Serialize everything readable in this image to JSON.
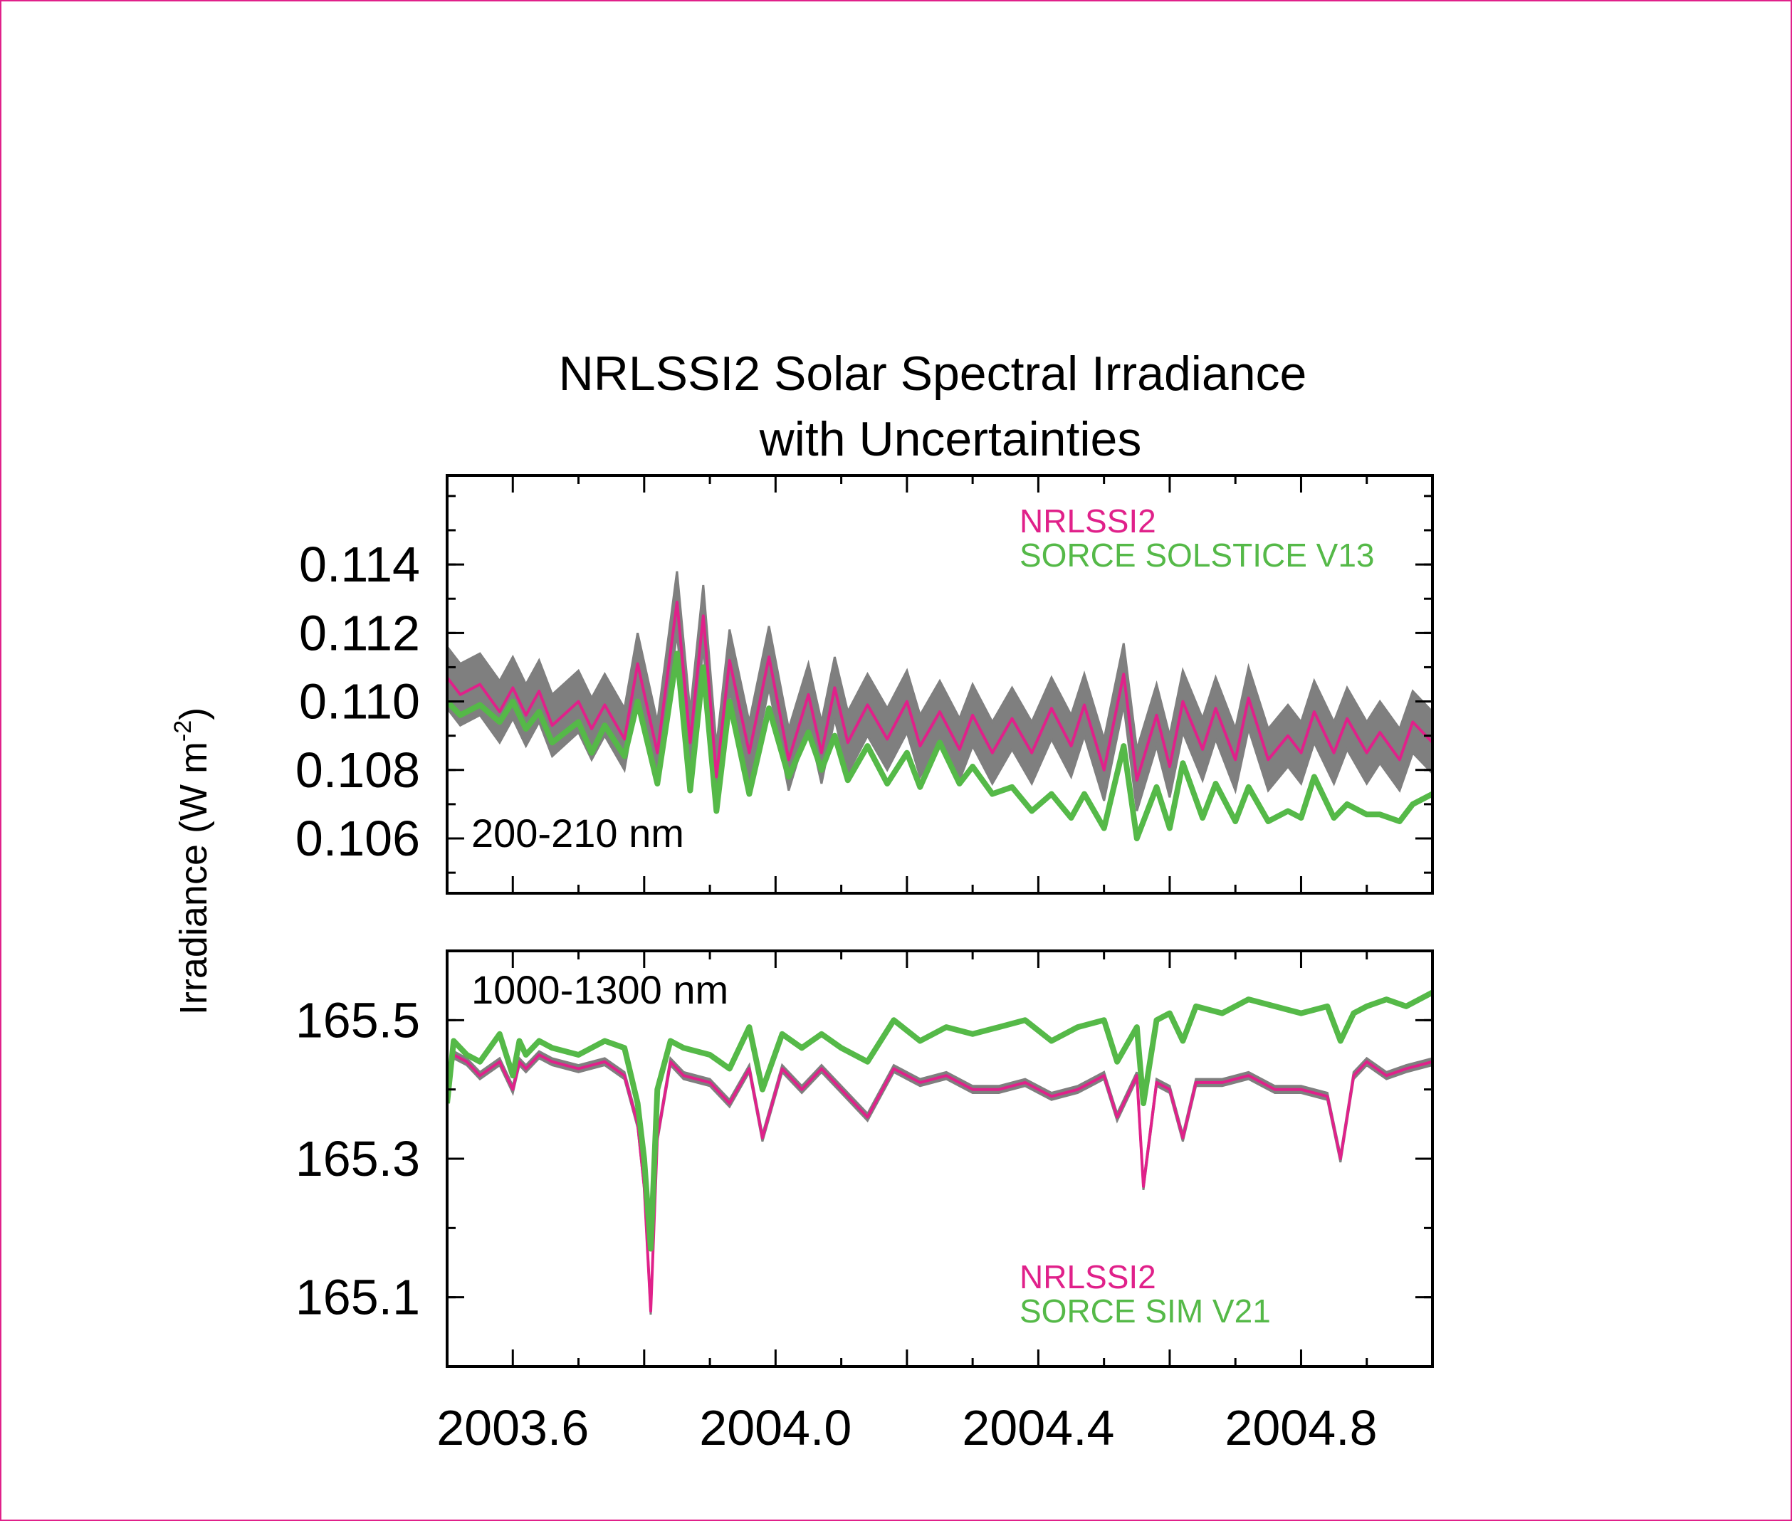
{
  "chart_data": {
    "title_line1": "NRLSSI2 Solar Spectral Irradiance",
    "title_line2": "with Uncertainties",
    "ylabel": "Irradiance (W m",
    "ylabel_sup": "-2",
    "ylabel_close": ")",
    "xlim": [
      2003.5,
      2005.0
    ],
    "x_ticks": [
      "2003.6",
      "2004.0",
      "2004.4",
      "2004.8"
    ],
    "x_tick_values": [
      2003.6,
      2004.0,
      2004.4,
      2004.8
    ],
    "colors": {
      "nrlssi2": "#e0218a",
      "sorce": "#55b948",
      "uncertainty": "#7f7f7f"
    },
    "panels": [
      {
        "band": "200-210 nm",
        "type": "line",
        "ylim": [
          0.1044,
          0.1166
        ],
        "y_ticks": [
          "0.114",
          "0.112",
          "0.110",
          "0.108",
          "0.106"
        ],
        "y_tick_values": [
          0.114,
          0.112,
          0.11,
          0.108,
          0.106
        ],
        "legend": [
          "NRLSSI2",
          "SORCE SOLSTICE V13"
        ],
        "uncertainty_halfwidth": 0.0009,
        "series": [
          {
            "name": "NRLSSI2",
            "x": [
              2003.5,
              2003.52,
              2003.55,
              2003.58,
              2003.6,
              2003.62,
              2003.64,
              2003.66,
              2003.7,
              2003.72,
              2003.74,
              2003.77,
              2003.79,
              2003.82,
              2003.85,
              2003.87,
              2003.89,
              2003.91,
              2003.93,
              2003.96,
              2003.99,
              2004.02,
              2004.05,
              2004.07,
              2004.09,
              2004.11,
              2004.14,
              2004.17,
              2004.2,
              2004.22,
              2004.25,
              2004.28,
              2004.3,
              2004.33,
              2004.36,
              2004.39,
              2004.42,
              2004.45,
              2004.47,
              2004.5,
              2004.53,
              2004.55,
              2004.58,
              2004.6,
              2004.62,
              2004.65,
              2004.67,
              2004.7,
              2004.72,
              2004.75,
              2004.78,
              2004.8,
              2004.82,
              2004.85,
              2004.87,
              2004.9,
              2004.92,
              2004.95,
              2004.97,
              2005.0
            ],
            "values": [
              0.1107,
              0.1102,
              0.1105,
              0.1097,
              0.1104,
              0.1096,
              0.1103,
              0.1093,
              0.11,
              0.1092,
              0.1099,
              0.1089,
              0.1111,
              0.1085,
              0.1129,
              0.1088,
              0.1125,
              0.1078,
              0.1112,
              0.1085,
              0.1113,
              0.1083,
              0.1102,
              0.1085,
              0.1104,
              0.1088,
              0.1099,
              0.1089,
              0.11,
              0.1087,
              0.1097,
              0.1086,
              0.1096,
              0.1085,
              0.1095,
              0.1085,
              0.1098,
              0.1087,
              0.1099,
              0.108,
              0.1108,
              0.1077,
              0.1096,
              0.1081,
              0.11,
              0.1086,
              0.1098,
              0.1083,
              0.1101,
              0.1083,
              0.109,
              0.1085,
              0.1097,
              0.1085,
              0.1095,
              0.1085,
              0.1091,
              0.1083,
              0.1094,
              0.1088
            ]
          },
          {
            "name": "SORCE SOLSTICE V13",
            "x": [
              2003.5,
              2003.52,
              2003.55,
              2003.58,
              2003.6,
              2003.62,
              2003.64,
              2003.66,
              2003.7,
              2003.72,
              2003.74,
              2003.77,
              2003.79,
              2003.82,
              2003.85,
              2003.87,
              2003.89,
              2003.91,
              2003.93,
              2003.96,
              2003.99,
              2004.02,
              2004.05,
              2004.07,
              2004.09,
              2004.11,
              2004.14,
              2004.17,
              2004.2,
              2004.22,
              2004.25,
              2004.28,
              2004.3,
              2004.33,
              2004.36,
              2004.39,
              2004.42,
              2004.45,
              2004.47,
              2004.5,
              2004.53,
              2004.55,
              2004.58,
              2004.6,
              2004.62,
              2004.65,
              2004.67,
              2004.7,
              2004.72,
              2004.75,
              2004.78,
              2004.8,
              2004.82,
              2004.85,
              2004.87,
              2004.9,
              2004.92,
              2004.95,
              2004.97,
              2005.0
            ],
            "values": [
              0.11,
              0.1096,
              0.1099,
              0.1094,
              0.11,
              0.1092,
              0.1097,
              0.1088,
              0.1094,
              0.1085,
              0.1093,
              0.1084,
              0.11,
              0.1076,
              0.1114,
              0.1074,
              0.111,
              0.1068,
              0.11,
              0.1073,
              0.1098,
              0.1078,
              0.1091,
              0.108,
              0.109,
              0.1077,
              0.1087,
              0.1076,
              0.1085,
              0.1075,
              0.1088,
              0.1076,
              0.1081,
              0.1073,
              0.1075,
              0.1068,
              0.1073,
              0.1066,
              0.1073,
              0.1063,
              0.1087,
              0.106,
              0.1075,
              0.1063,
              0.1082,
              0.1066,
              0.1076,
              0.1065,
              0.1075,
              0.1065,
              0.1068,
              0.1066,
              0.1078,
              0.1066,
              0.107,
              0.1067,
              0.1067,
              0.1065,
              0.107,
              0.1073
            ]
          }
        ]
      },
      {
        "band": "1000-1300 nm",
        "type": "line",
        "ylim": [
          165.0,
          165.6
        ],
        "y_ticks": [
          "165.5",
          "165.3",
          "165.1"
        ],
        "y_tick_values": [
          165.5,
          165.3,
          165.1
        ],
        "legend": [
          "NRLSSI2",
          "SORCE SIM V21"
        ],
        "uncertainty_halfwidth": 0.005,
        "series": [
          {
            "name": "NRLSSI2",
            "x": [
              2003.5,
              2003.51,
              2003.53,
              2003.55,
              2003.58,
              2003.6,
              2003.61,
              2003.62,
              2003.64,
              2003.66,
              2003.7,
              2003.74,
              2003.77,
              2003.79,
              2003.8,
              2003.81,
              2003.82,
              2003.84,
              2003.86,
              2003.9,
              2003.93,
              2003.96,
              2003.98,
              2004.01,
              2004.04,
              2004.07,
              2004.1,
              2004.14,
              2004.18,
              2004.22,
              2004.26,
              2004.3,
              2004.34,
              2004.38,
              2004.42,
              2004.46,
              2004.5,
              2004.52,
              2004.55,
              2004.56,
              2004.58,
              2004.6,
              2004.62,
              2004.64,
              2004.68,
              2004.72,
              2004.76,
              2004.8,
              2004.84,
              2004.86,
              2004.88,
              2004.9,
              2004.93,
              2004.96,
              2005.0
            ],
            "values": [
              165.38,
              165.45,
              165.44,
              165.42,
              165.44,
              165.4,
              165.44,
              165.43,
              165.45,
              165.44,
              165.43,
              165.44,
              165.42,
              165.35,
              165.26,
              165.08,
              165.33,
              165.44,
              165.42,
              165.41,
              165.38,
              165.43,
              165.33,
              165.43,
              165.4,
              165.43,
              165.4,
              165.36,
              165.43,
              165.41,
              165.42,
              165.4,
              165.4,
              165.41,
              165.39,
              165.4,
              165.42,
              165.36,
              165.42,
              165.26,
              165.41,
              165.4,
              165.33,
              165.41,
              165.41,
              165.42,
              165.4,
              165.4,
              165.39,
              165.3,
              165.42,
              165.44,
              165.42,
              165.43,
              165.44
            ]
          },
          {
            "name": "SORCE SIM V21",
            "x": [
              2003.5,
              2003.51,
              2003.53,
              2003.55,
              2003.58,
              2003.6,
              2003.61,
              2003.62,
              2003.64,
              2003.66,
              2003.7,
              2003.74,
              2003.77,
              2003.79,
              2003.8,
              2003.81,
              2003.82,
              2003.84,
              2003.86,
              2003.9,
              2003.93,
              2003.96,
              2003.98,
              2004.01,
              2004.04,
              2004.07,
              2004.1,
              2004.14,
              2004.18,
              2004.22,
              2004.26,
              2004.3,
              2004.34,
              2004.38,
              2004.42,
              2004.46,
              2004.5,
              2004.52,
              2004.55,
              2004.56,
              2004.58,
              2004.6,
              2004.62,
              2004.64,
              2004.68,
              2004.72,
              2004.76,
              2004.8,
              2004.84,
              2004.86,
              2004.88,
              2004.9,
              2004.93,
              2004.96,
              2005.0
            ],
            "values": [
              165.38,
              165.47,
              165.45,
              165.44,
              165.48,
              165.42,
              165.47,
              165.45,
              165.47,
              165.46,
              165.45,
              165.47,
              165.46,
              165.38,
              165.3,
              165.17,
              165.4,
              165.47,
              165.46,
              165.45,
              165.43,
              165.49,
              165.4,
              165.48,
              165.46,
              165.48,
              165.46,
              165.44,
              165.5,
              165.47,
              165.49,
              165.48,
              165.49,
              165.5,
              165.47,
              165.49,
              165.5,
              165.44,
              165.49,
              165.38,
              165.5,
              165.51,
              165.47,
              165.52,
              165.51,
              165.53,
              165.52,
              165.51,
              165.52,
              165.47,
              165.51,
              165.52,
              165.53,
              165.52,
              165.54
            ]
          }
        ]
      }
    ]
  }
}
